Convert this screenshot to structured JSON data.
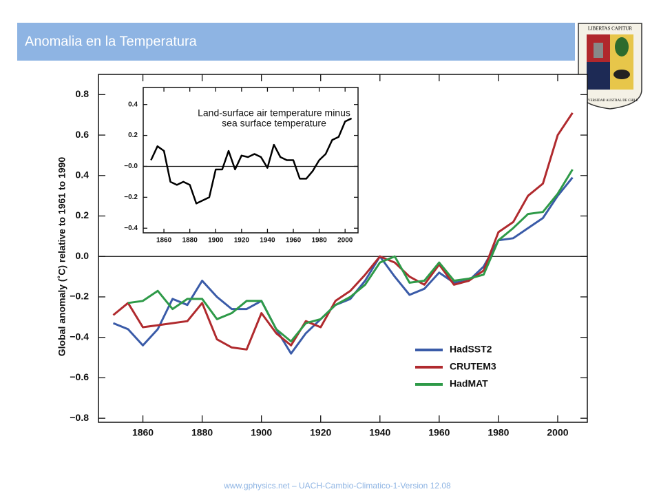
{
  "header": {
    "title": "Anomalia en la Temperatura"
  },
  "logo": {
    "motto": "LIBERTAS CAPITUR",
    "name": "UNIVERSIDAD AUSTRAL DE CHILE"
  },
  "footer": {
    "text": "www.gphysics.net – UACH-Cambio-Climatico-1-Version 12.08"
  },
  "chart_data": [
    {
      "type": "line",
      "ylabel": "Global anomaly (˚C)  relative to 1961 to 1990",
      "x": [
        1850,
        1855,
        1860,
        1865,
        1870,
        1875,
        1880,
        1885,
        1890,
        1895,
        1900,
        1905,
        1910,
        1915,
        1920,
        1925,
        1930,
        1935,
        1940,
        1945,
        1950,
        1955,
        1960,
        1965,
        1970,
        1975,
        1980,
        1985,
        1990,
        1995,
        2000,
        2005
      ],
      "xlim": [
        1845,
        2010
      ],
      "xticks": [
        1860,
        1880,
        1900,
        1920,
        1940,
        1960,
        1980,
        2000
      ],
      "ylim": [
        -0.82,
        0.9
      ],
      "yticks": [
        {
          "value": -0.8,
          "label": "−0.8"
        },
        {
          "value": -0.6,
          "label": "−0.6"
        },
        {
          "value": -0.4,
          "label": "−0.4"
        },
        {
          "value": -0.2,
          "label": "−0.2"
        },
        {
          "value": 0,
          "label": "0.0"
        },
        0.2,
        0.4,
        0.6,
        0.8
      ],
      "legend": "lower right",
      "series": [
        {
          "name": "HadSST2",
          "color": "#3a5ba8",
          "values": [
            -0.33,
            -0.36,
            -0.44,
            -0.36,
            -0.21,
            -0.24,
            -0.12,
            -0.2,
            -0.26,
            -0.26,
            -0.22,
            -0.36,
            -0.48,
            -0.38,
            -0.31,
            -0.24,
            -0.21,
            -0.12,
            0.0,
            -0.1,
            -0.19,
            -0.16,
            -0.08,
            -0.13,
            -0.12,
            -0.05,
            0.08,
            0.09,
            0.14,
            0.19,
            0.3,
            0.39
          ]
        },
        {
          "name": "CRUTEM3",
          "color": "#b02a2e",
          "values": [
            -0.29,
            -0.23,
            -0.35,
            -0.34,
            -0.33,
            -0.32,
            -0.23,
            -0.41,
            -0.45,
            -0.46,
            -0.28,
            -0.38,
            -0.44,
            -0.32,
            -0.35,
            -0.22,
            -0.17,
            -0.09,
            0.0,
            -0.03,
            -0.1,
            -0.14,
            -0.04,
            -0.14,
            -0.12,
            -0.07,
            0.12,
            0.17,
            0.3,
            0.36,
            0.6,
            0.71
          ]
        },
        {
          "name": "HadMAT",
          "color": "#2e9a48",
          "values": [
            null,
            -0.23,
            -0.22,
            -0.17,
            -0.26,
            -0.21,
            -0.21,
            -0.31,
            -0.28,
            -0.22,
            -0.22,
            -0.36,
            -0.42,
            -0.33,
            -0.31,
            -0.24,
            -0.2,
            -0.14,
            -0.03,
            0.0,
            -0.13,
            -0.12,
            -0.03,
            -0.12,
            -0.11,
            -0.09,
            0.08,
            0.14,
            0.21,
            0.22,
            0.31,
            0.43
          ]
        }
      ]
    },
    {
      "type": "line",
      "title": [
        "Land-surface air temperature minus",
        "sea surface temperature"
      ],
      "x": [
        1850,
        1855,
        1860,
        1865,
        1870,
        1875,
        1880,
        1885,
        1890,
        1895,
        1900,
        1905,
        1910,
        1915,
        1920,
        1925,
        1930,
        1935,
        1940,
        1945,
        1950,
        1955,
        1960,
        1965,
        1970,
        1975,
        1980,
        1985,
        1990,
        1995,
        2000,
        2005
      ],
      "xlim": [
        1844,
        2010
      ],
      "xticks": [
        1860,
        1880,
        1900,
        1920,
        1940,
        1960,
        1980,
        2000
      ],
      "ylim": [
        -0.43,
        0.51
      ],
      "yticks": [
        {
          "value": -0.4,
          "label": "−0.4"
        },
        {
          "value": -0.2,
          "label": "−0.2"
        },
        {
          "value": 0,
          "label": "−0.0"
        },
        0.2,
        0.4
      ],
      "color": "#000000",
      "values": [
        0.04,
        0.13,
        0.1,
        -0.1,
        -0.12,
        -0.1,
        -0.12,
        -0.24,
        -0.22,
        -0.2,
        -0.02,
        -0.02,
        0.1,
        -0.02,
        0.07,
        0.06,
        0.08,
        0.06,
        -0.01,
        0.14,
        0.06,
        0.04,
        0.04,
        -0.08,
        -0.08,
        -0.03,
        0.04,
        0.08,
        0.17,
        0.19,
        0.29,
        0.31
      ]
    }
  ]
}
